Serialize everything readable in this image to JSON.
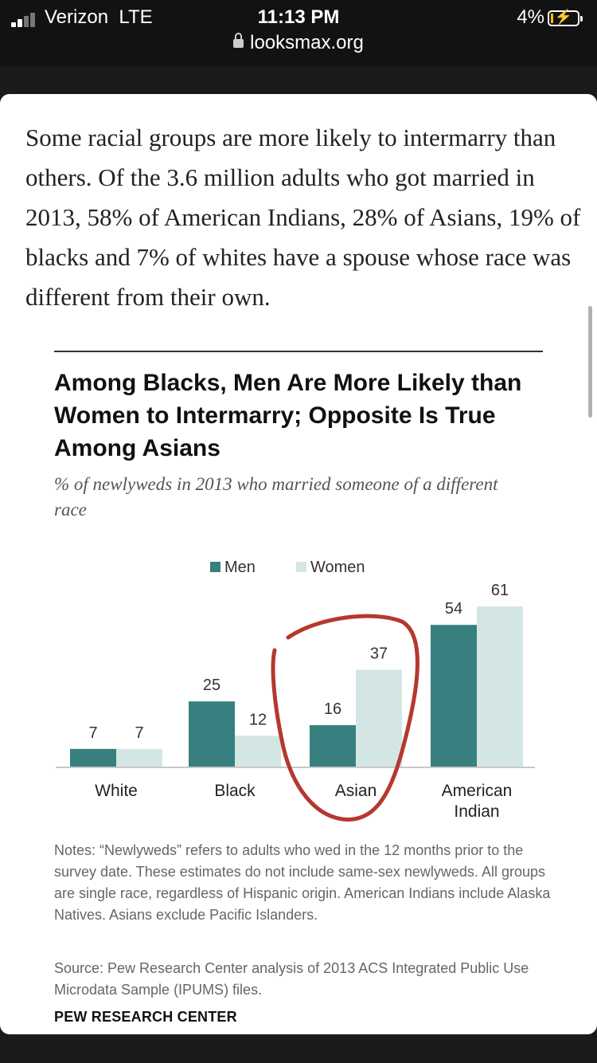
{
  "status_bar": {
    "carrier": "Verizon",
    "network": "LTE",
    "time": "11:13 PM",
    "battery": "4%",
    "url": "looksmax.org"
  },
  "article": {
    "paragraph": "Some racial groups are more likely to intermarry than others. Of the 3.6 million adults who got married in 2013, 58% of American Indians, 28% of Asians, 19% of blacks and 7% of whites have a spouse whose race was different from their own."
  },
  "chart_data": {
    "type": "bar",
    "title": "Among Blacks, Men Are More Likely than Women to Intermarry; Opposite Is True Among Asians",
    "subtitle": "% of newlyweds in 2013 who married someone of a different race",
    "categories": [
      "White",
      "Black",
      "Asian",
      "American Indian"
    ],
    "series": [
      {
        "name": "Men",
        "values": [
          7,
          25,
          16,
          54
        ],
        "color": "#37807f"
      },
      {
        "name": "Women",
        "values": [
          7,
          12,
          37,
          61
        ],
        "color": "#d4e6e4"
      }
    ],
    "ylim": [
      0,
      61
    ],
    "legend": "top-center",
    "grid": false,
    "annotation": "hand-drawn red circle around Asian"
  },
  "notes": "Notes: “Newlyweds” refers to adults who wed in the 12 months prior to the survey date. These estimates do not include same-sex newlyweds. All groups are single race, regardless of Hispanic origin. American Indians include Alaska Natives. Asians exclude Pacific Islanders.",
  "source": "Source: Pew Research Center analysis of 2013 ACS Integrated Public Use Microdata Sample (IPUMS) files.",
  "brand": "PEW RESEARCH CENTER",
  "colors": {
    "men": "#37807f",
    "women": "#d4e6e4",
    "annotation": "#b5382f"
  }
}
